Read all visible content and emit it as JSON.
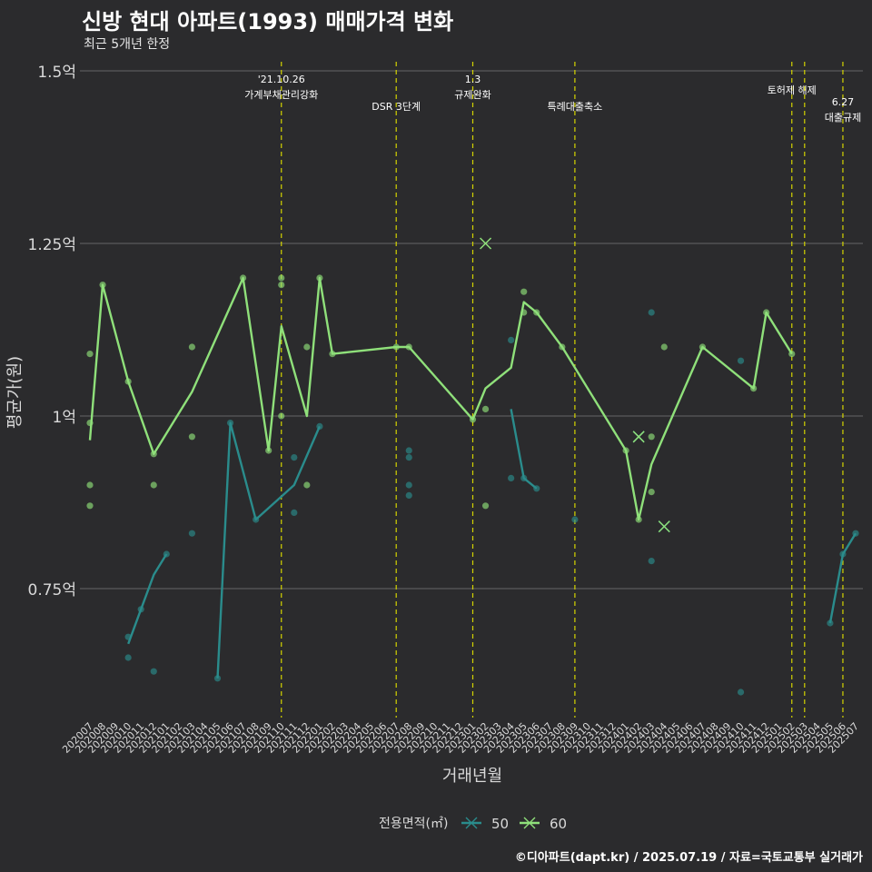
{
  "title": "신방 현대 아파트(1993) 매매가격 변화",
  "subtitle": "최근 5개년 한정",
  "caption": "©디아파트(dapt.kr) / 2025.07.19 / 자료=국토교통부 실거래가",
  "colors": {
    "background": "#2b2b2d",
    "series50": "#2a8c8c",
    "series60": "#8fe07a",
    "policy_line": "#d4d400",
    "grid": "#666666"
  },
  "chart_data": {
    "type": "line",
    "xlabel": "거래년월",
    "ylabel": "평균가(원)",
    "ylim": [
      0.53,
      1.52
    ],
    "yticks": [
      {
        "value": 0.75,
        "label": "0.75억"
      },
      {
        "value": 1.0,
        "label": "1억"
      },
      {
        "value": 1.25,
        "label": "1.25억"
      },
      {
        "value": 1.5,
        "label": "1.5억"
      }
    ],
    "x_categories": [
      "202007",
      "202008",
      "202009",
      "202010",
      "202011",
      "202012",
      "202101",
      "202102",
      "202103",
      "202104",
      "202105",
      "202106",
      "202107",
      "202108",
      "202109",
      "202110",
      "202111",
      "202112",
      "202201",
      "202202",
      "202203",
      "202204",
      "202205",
      "202206",
      "202207",
      "202208",
      "202209",
      "202210",
      "202211",
      "202212",
      "202301",
      "202302",
      "202303",
      "202304",
      "202305",
      "202306",
      "202307",
      "202308",
      "202309",
      "202310",
      "202311",
      "202312",
      "202401",
      "202402",
      "202403",
      "202404",
      "202405",
      "202406",
      "202407",
      "202408",
      "202409",
      "202410",
      "202411",
      "202412",
      "202501",
      "202502",
      "202503",
      "202504",
      "202505",
      "202506",
      "202507"
    ],
    "legend": {
      "title": "전용면적(㎡)",
      "position": "bottom",
      "items": [
        "50",
        "60"
      ]
    },
    "policy_lines": [
      {
        "x": "202110",
        "label": "'21.10.26\n가계부채관리강화",
        "row": 0
      },
      {
        "x": "202207",
        "label": "DSR 3단계",
        "row": 1
      },
      {
        "x": "202301",
        "label": "1.3\n규제완화",
        "row": 0
      },
      {
        "x": "202309",
        "label": "특례대출축소",
        "row": 1
      },
      {
        "x": "202502",
        "label": "토허제 해제",
        "row": 0
      },
      {
        "x": "202503",
        "label": "",
        "row": 0
      },
      {
        "x": "202506",
        "label": "6.27\n대출규제",
        "row": 2
      }
    ],
    "series": [
      {
        "name": "50",
        "color": "#2a8c8c",
        "line_segments": [
          [
            [
              "202010",
              0.67
            ],
            [
              "202011",
              0.72
            ],
            [
              "202012",
              0.77
            ],
            [
              "202101",
              0.8
            ]
          ],
          [
            [
              "202105",
              0.62
            ],
            [
              "202106",
              0.99
            ],
            [
              "202108",
              0.85
            ],
            [
              "202111",
              0.9
            ],
            [
              "202201",
              0.985
            ]
          ],
          [
            [
              "202304",
              1.01
            ],
            [
              "202305",
              0.91
            ],
            [
              "202306",
              0.895
            ]
          ],
          [
            [
              "202505",
              0.7
            ],
            [
              "202506",
              0.8
            ],
            [
              "202507",
              0.83
            ]
          ]
        ],
        "points": [
          [
            "202010",
            0.68
          ],
          [
            "202010",
            0.65
          ],
          [
            "202011",
            0.72
          ],
          [
            "202012",
            0.63
          ],
          [
            "202101",
            0.8
          ],
          [
            "202103",
            0.83
          ],
          [
            "202105",
            0.62
          ],
          [
            "202106",
            0.99
          ],
          [
            "202108",
            0.85
          ],
          [
            "202111",
            0.94
          ],
          [
            "202111",
            0.86
          ],
          [
            "202201",
            0.985
          ],
          [
            "202208",
            0.95
          ],
          [
            "202208",
            0.94
          ],
          [
            "202208",
            0.9
          ],
          [
            "202208",
            0.885
          ],
          [
            "202304",
            1.11
          ],
          [
            "202304",
            0.91
          ],
          [
            "202305",
            0.91
          ],
          [
            "202306",
            0.895
          ],
          [
            "202309",
            0.85
          ],
          [
            "202403",
            0.79
          ],
          [
            "202403",
            1.15
          ],
          [
            "202410",
            0.6
          ],
          [
            "202410",
            1.08
          ],
          [
            "202505",
            0.7
          ],
          [
            "202506",
            0.8
          ],
          [
            "202507",
            0.83
          ]
        ],
        "markers_x": [
          [
            "202402",
            0.97
          ],
          [
            "202404",
            0.84
          ]
        ]
      },
      {
        "name": "60",
        "color": "#8fe07a",
        "line_segments": [
          [
            [
              "202007",
              0.965
            ],
            [
              "202008",
              1.19
            ],
            [
              "202010",
              1.05
            ],
            [
              "202012",
              0.945
            ],
            [
              "202103",
              1.035
            ],
            [
              "202107",
              1.2
            ],
            [
              "202109",
              0.95
            ],
            [
              "202110",
              1.13
            ],
            [
              "202112",
              1.0
            ],
            [
              "202201",
              1.2
            ],
            [
              "202202",
              1.09
            ],
            [
              "202207",
              1.1
            ],
            [
              "202208",
              1.1
            ],
            [
              "202301",
              0.995
            ],
            [
              "202302",
              1.04
            ],
            [
              "202304",
              1.07
            ],
            [
              "202305",
              1.165
            ],
            [
              "202306",
              1.15
            ],
            [
              "202308",
              1.1
            ],
            [
              "202401",
              0.95
            ],
            [
              "202402",
              0.85
            ],
            [
              "202403",
              0.93
            ],
            [
              "202407",
              1.1
            ],
            [
              "202411",
              1.04
            ],
            [
              "202412",
              1.15
            ],
            [
              "202502",
              1.09
            ]
          ]
        ],
        "points": [
          [
            "202007",
            1.09
          ],
          [
            "202007",
            0.99
          ],
          [
            "202007",
            0.9
          ],
          [
            "202007",
            0.87
          ],
          [
            "202008",
            1.19
          ],
          [
            "202010",
            1.05
          ],
          [
            "202012",
            0.945
          ],
          [
            "202012",
            0.9
          ],
          [
            "202103",
            1.1
          ],
          [
            "202103",
            0.97
          ],
          [
            "202107",
            1.2
          ],
          [
            "202109",
            0.95
          ],
          [
            "202110",
            1.2
          ],
          [
            "202110",
            1.19
          ],
          [
            "202110",
            1.0
          ],
          [
            "202112",
            1.1
          ],
          [
            "202112",
            0.9
          ],
          [
            "202201",
            1.2
          ],
          [
            "202202",
            1.09
          ],
          [
            "202207",
            1.1
          ],
          [
            "202208",
            1.1
          ],
          [
            "202301",
            0.995
          ],
          [
            "202302",
            1.01
          ],
          [
            "202302",
            0.87
          ],
          [
            "202305",
            1.18
          ],
          [
            "202305",
            1.15
          ],
          [
            "202306",
            1.15
          ],
          [
            "202308",
            1.1
          ],
          [
            "202401",
            0.95
          ],
          [
            "202402",
            0.85
          ],
          [
            "202403",
            0.97
          ],
          [
            "202403",
            0.89
          ],
          [
            "202404",
            1.1
          ],
          [
            "202407",
            1.1
          ],
          [
            "202411",
            1.04
          ],
          [
            "202412",
            1.15
          ],
          [
            "202502",
            1.09
          ]
        ],
        "markers_x": [
          [
            "202302",
            1.25
          ],
          [
            "202402",
            0.97
          ],
          [
            "202404",
            0.84
          ]
        ]
      }
    ]
  }
}
